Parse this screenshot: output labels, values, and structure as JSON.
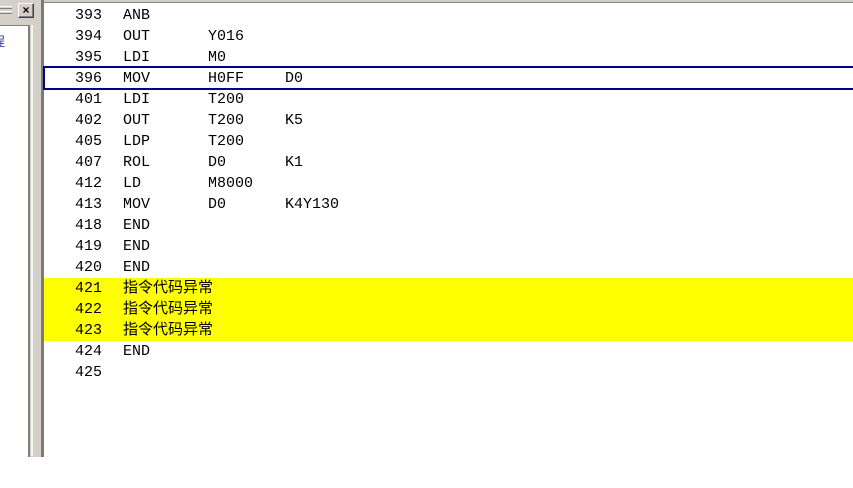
{
  "left_panel": {
    "close_icon": "×",
    "tree_item_fragment": "程"
  },
  "program_list": {
    "rows": [
      {
        "step": "393",
        "instr": "ANB",
        "op1": "",
        "op2": "",
        "selected": false,
        "error": false
      },
      {
        "step": "394",
        "instr": "OUT",
        "op1": "Y016",
        "op2": "",
        "selected": false,
        "error": false
      },
      {
        "step": "395",
        "instr": "LDI",
        "op1": "M0",
        "op2": "",
        "selected": false,
        "error": false
      },
      {
        "step": "396",
        "instr": "MOV",
        "op1": "H0FF",
        "op2": "D0",
        "selected": true,
        "error": false
      },
      {
        "step": "401",
        "instr": "LDI",
        "op1": "T200",
        "op2": "",
        "selected": false,
        "error": false
      },
      {
        "step": "402",
        "instr": "OUT",
        "op1": "T200",
        "op2": "K5",
        "selected": false,
        "error": false
      },
      {
        "step": "405",
        "instr": "LDP",
        "op1": "T200",
        "op2": "",
        "selected": false,
        "error": false
      },
      {
        "step": "407",
        "instr": "ROL",
        "op1": "D0",
        "op2": "K1",
        "selected": false,
        "error": false
      },
      {
        "step": "412",
        "instr": "LD",
        "op1": "M8000",
        "op2": "",
        "selected": false,
        "error": false
      },
      {
        "step": "413",
        "instr": "MOV",
        "op1": "D0",
        "op2": "K4Y130",
        "selected": false,
        "error": false
      },
      {
        "step": "418",
        "instr": "END",
        "op1": "",
        "op2": "",
        "selected": false,
        "error": false
      },
      {
        "step": "419",
        "instr": "END",
        "op1": "",
        "op2": "",
        "selected": false,
        "error": false
      },
      {
        "step": "420",
        "instr": "END",
        "op1": "",
        "op2": "",
        "selected": false,
        "error": false
      },
      {
        "step": "421",
        "instr": "指令代码异常",
        "op1": "",
        "op2": "",
        "selected": false,
        "error": true
      },
      {
        "step": "422",
        "instr": "指令代码异常",
        "op1": "",
        "op2": "",
        "selected": false,
        "error": true
      },
      {
        "step": "423",
        "instr": "指令代码异常",
        "op1": "",
        "op2": "",
        "selected": false,
        "error": true
      },
      {
        "step": "424",
        "instr": "END",
        "op1": "",
        "op2": "",
        "selected": false,
        "error": false
      },
      {
        "step": "425",
        "instr": "",
        "op1": "",
        "op2": "",
        "selected": false,
        "error": false
      }
    ]
  },
  "colors": {
    "selection_border": "#000089",
    "error_highlight": "#ffff00",
    "panel_gray": "#d4d0c8"
  }
}
